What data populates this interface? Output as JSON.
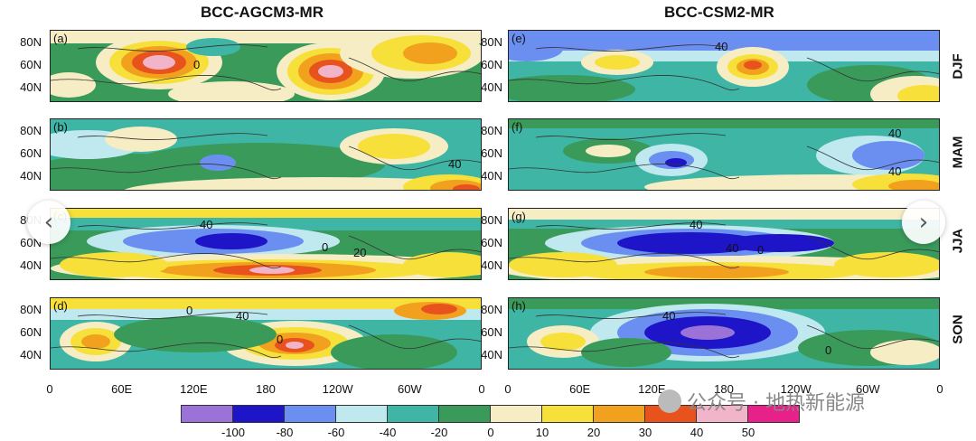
{
  "titles": {
    "left": "BCC-AGCM3-MR",
    "right": "BCC-CSM2-MR"
  },
  "seasons": [
    "DJF",
    "MAM",
    "JJA",
    "SON"
  ],
  "panels": [
    {
      "label": "(a)",
      "model": "BCC-AGCM3-MR",
      "season": "DJF",
      "contour_labels": [
        "0"
      ]
    },
    {
      "label": "(b)",
      "model": "BCC-AGCM3-MR",
      "season": "MAM",
      "contour_labels": [
        "40"
      ]
    },
    {
      "label": "(c)",
      "model": "BCC-AGCM3-MR",
      "season": "JJA",
      "contour_labels": [
        "40",
        "0",
        "20"
      ]
    },
    {
      "label": "(d)",
      "model": "BCC-AGCM3-MR",
      "season": "SON",
      "contour_labels": [
        "0",
        "40",
        "0"
      ]
    },
    {
      "label": "(e)",
      "model": "BCC-CSM2-MR",
      "season": "DJF",
      "contour_labels": [
        "40"
      ]
    },
    {
      "label": "(f)",
      "model": "BCC-CSM2-MR",
      "season": "MAM",
      "contour_labels": [
        "40",
        "40"
      ]
    },
    {
      "label": "(g)",
      "model": "BCC-CSM2-MR",
      "season": "JJA",
      "contour_labels": [
        "40",
        "40",
        "0"
      ]
    },
    {
      "label": "(h)",
      "model": "BCC-CSM2-MR",
      "season": "SON",
      "contour_labels": [
        "40",
        "0"
      ]
    }
  ],
  "lat_labels": [
    "80N",
    "60N",
    "40N"
  ],
  "lon_labels": [
    "0",
    "60E",
    "120E",
    "180",
    "120W",
    "60W",
    "0"
  ],
  "colorbar": {
    "labels": [
      "-100",
      "-80",
      "-60",
      "-40",
      "-20",
      "0",
      "10",
      "20",
      "30",
      "40",
      "50"
    ],
    "colors": [
      "#9b72d8",
      "#1e14c8",
      "#6a8ff0",
      "#bfe8ef",
      "#3fb5a5",
      "#3a9a5a",
      "#f6edc5",
      "#f7e03a",
      "#f2a11e",
      "#e8531d",
      "#f2b4c9",
      "#e8208a"
    ]
  },
  "watermark": {
    "text": "公众号 · 地热新能源",
    "icon": "wechat-icon"
  },
  "nav": {
    "prev_icon": "chevron-left-icon",
    "next_icon": "chevron-right-icon"
  }
}
